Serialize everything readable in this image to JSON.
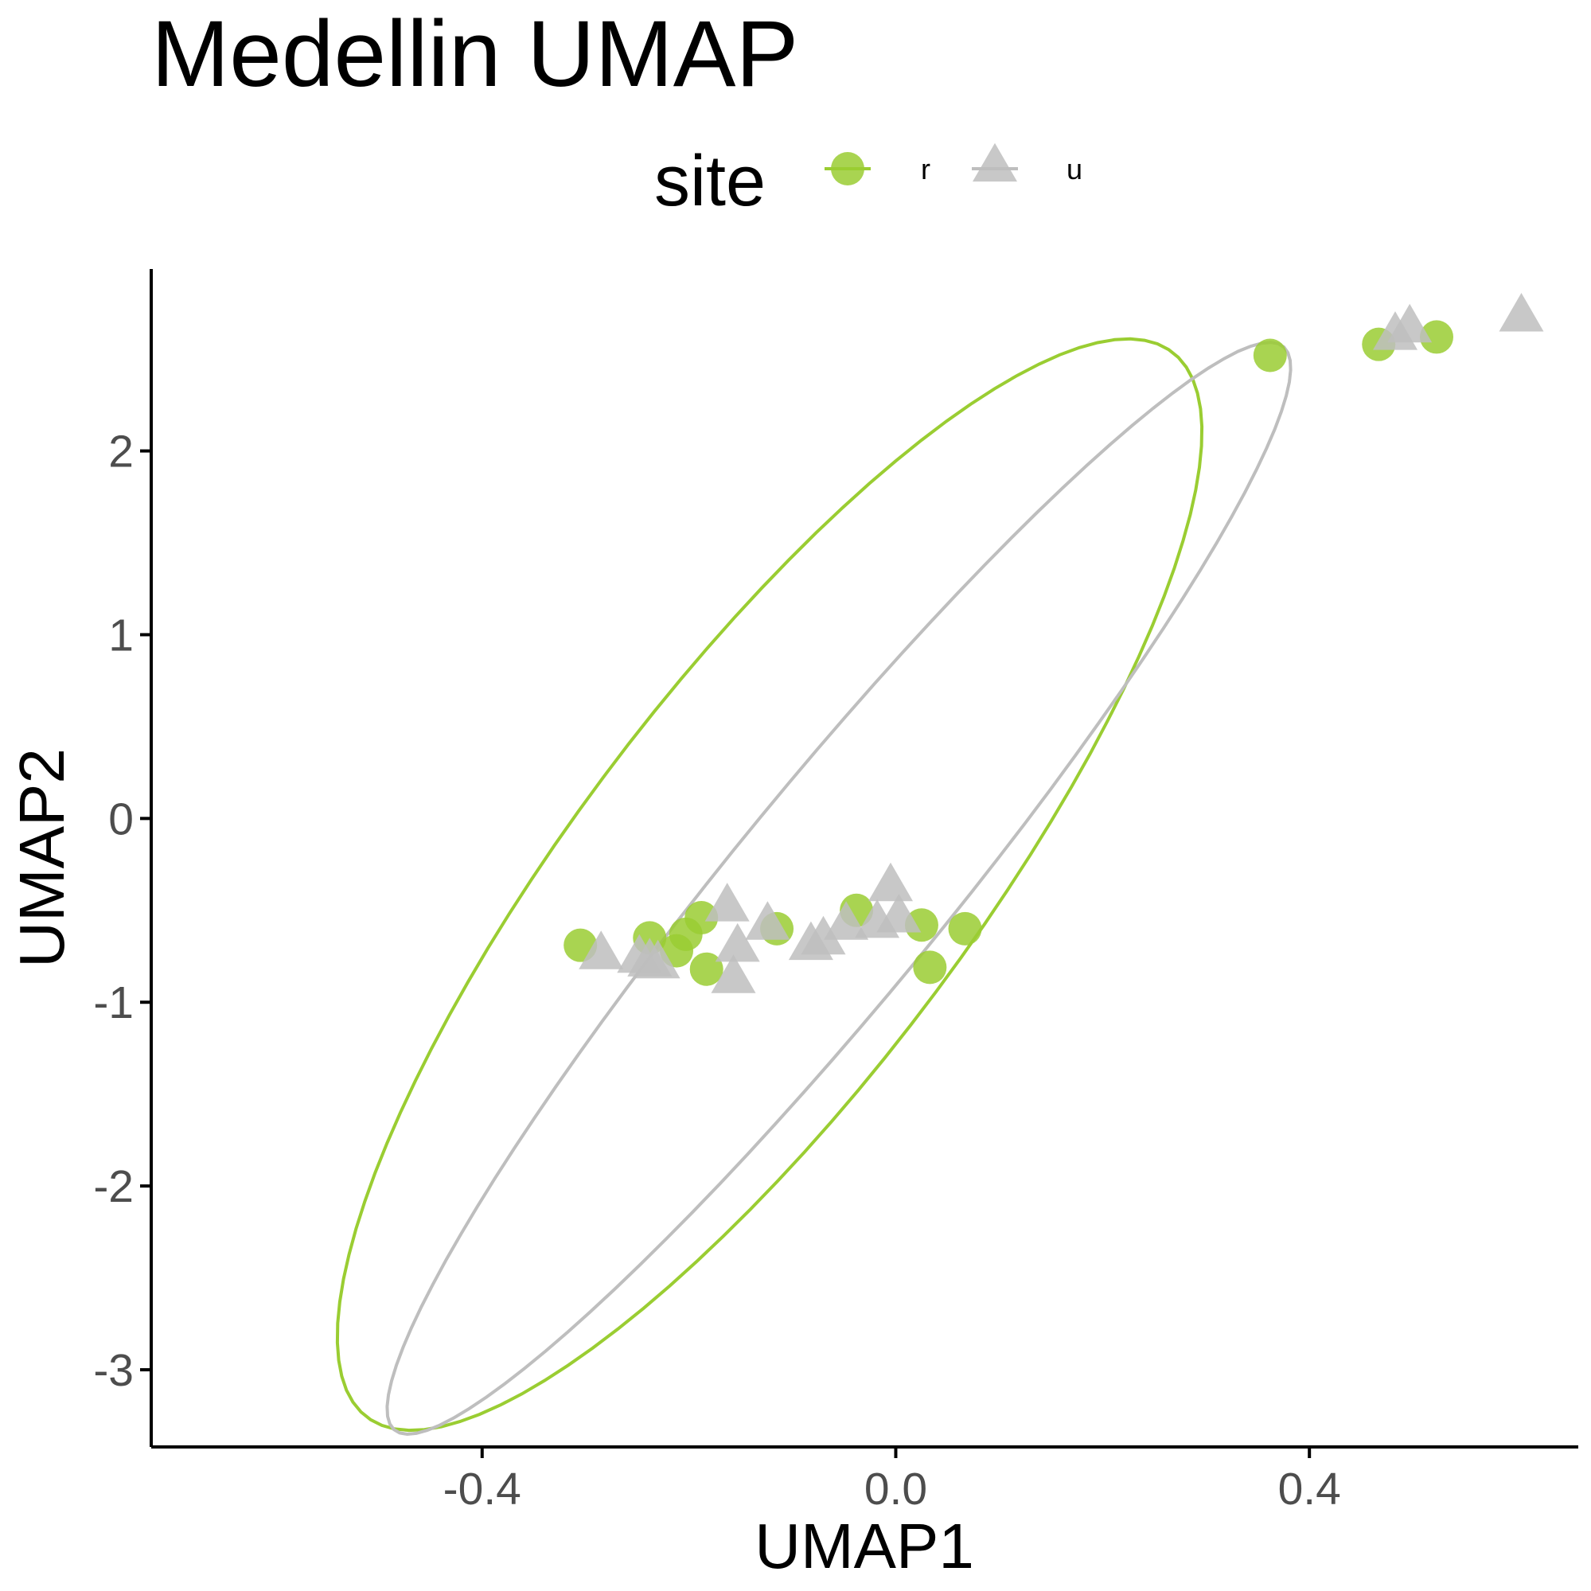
{
  "chart_data": {
    "type": "scatter",
    "title": "Medellin UMAP",
    "xlabel": "UMAP1",
    "ylabel": "UMAP2",
    "xlim": [
      -0.72,
      0.66
    ],
    "ylim": [
      -3.42,
      2.99
    ],
    "x_ticks": [
      -0.4,
      0.0,
      0.4
    ],
    "x_tick_labels": [
      "-0.4",
      "0.0",
      "0.4"
    ],
    "y_ticks": [
      -3,
      -2,
      -1,
      0,
      1,
      2
    ],
    "y_tick_labels": [
      "-3",
      "-2",
      "-1",
      "0",
      "1",
      "2"
    ],
    "grid": false,
    "legend": {
      "title": "site",
      "position": "top"
    },
    "series": [
      {
        "name": "r",
        "color": "#9acd32",
        "marker": "circle",
        "points": [
          [
            -0.305,
            -0.69
          ],
          [
            -0.238,
            -0.65
          ],
          [
            -0.212,
            -0.72
          ],
          [
            -0.203,
            -0.63
          ],
          [
            -0.188,
            -0.54
          ],
          [
            -0.183,
            -0.82
          ],
          [
            -0.115,
            -0.6
          ],
          [
            -0.038,
            -0.5
          ],
          [
            0.025,
            -0.58
          ],
          [
            0.033,
            -0.81
          ],
          [
            0.067,
            -0.6
          ],
          [
            0.362,
            2.52
          ],
          [
            0.467,
            2.58
          ],
          [
            0.523,
            2.62
          ]
        ],
        "ellipse": {
          "center": [
            -0.122,
            -0.36
          ],
          "semi_major": 2.99,
          "semi_minor": 0.232,
          "angle_deg": 83.3
        }
      },
      {
        "name": "u",
        "color": "#bebebe",
        "marker": "triangle",
        "points": [
          [
            -0.285,
            -0.75
          ],
          [
            -0.248,
            -0.77
          ],
          [
            -0.238,
            -0.79
          ],
          [
            -0.23,
            -0.8
          ],
          [
            -0.163,
            -0.49
          ],
          [
            -0.153,
            -0.71
          ],
          [
            -0.157,
            -0.88
          ],
          [
            -0.124,
            -0.59
          ],
          [
            -0.082,
            -0.7
          ],
          [
            -0.07,
            -0.67
          ],
          [
            -0.048,
            -0.59
          ],
          [
            -0.018,
            -0.58
          ],
          [
            -0.005,
            -0.38
          ],
          [
            0.003,
            -0.55
          ],
          [
            0.483,
            2.62
          ],
          [
            0.497,
            2.66
          ],
          [
            0.605,
            2.72
          ]
        ],
        "ellipse": {
          "center": [
            -0.055,
            -0.38
          ],
          "semi_major": 3.0,
          "semi_minor": 0.13,
          "angle_deg": 82.0
        }
      }
    ]
  }
}
